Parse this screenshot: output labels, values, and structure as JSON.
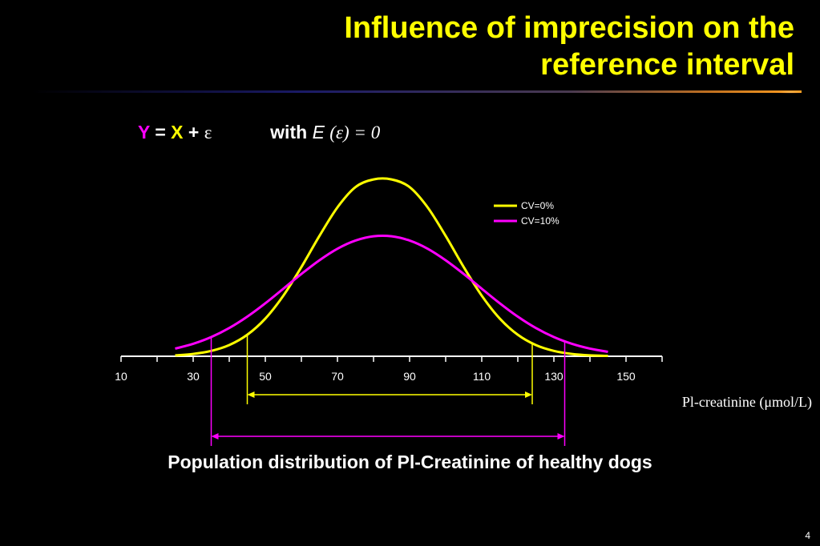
{
  "slide": {
    "title_line1": "Influence of imprecision on the",
    "title_line2": "reference interval",
    "formula": {
      "y": "Y",
      "eq": "=",
      "x": "X",
      "plus": "+",
      "eps": "ε",
      "with": "with",
      "e": "E",
      "expect": "(ε) = 0"
    },
    "xlabel": "Pl-creatinine (μmol/L)",
    "caption": "Population distribution of Pl-Creatinine of healthy dogs",
    "page_number": "4"
  },
  "colors": {
    "background": "#000000",
    "title": "#ffff00",
    "series_cv0": "#ffff00",
    "series_cv10": "#ff00ff",
    "text": "#ffffff"
  },
  "chart_data": {
    "type": "line",
    "x_ticks": [
      10,
      30,
      50,
      70,
      90,
      110,
      130,
      150
    ],
    "xlim": [
      10,
      160
    ],
    "series": [
      {
        "name": "CV=0%",
        "color": "#ffff00",
        "x": [
          25,
          30,
          35,
          40,
          45,
          50,
          55,
          60,
          65,
          70,
          75,
          80,
          85,
          90,
          95,
          100,
          105,
          110,
          115,
          120,
          125,
          130,
          135,
          140,
          145
        ],
        "y": [
          0.005,
          0.013,
          0.03,
          0.063,
          0.121,
          0.212,
          0.341,
          0.502,
          0.677,
          0.838,
          0.952,
          0.995,
          0.995,
          0.952,
          0.838,
          0.677,
          0.502,
          0.341,
          0.212,
          0.121,
          0.063,
          0.03,
          0.013,
          0.005,
          0.002
        ]
      },
      {
        "name": "CV=10%",
        "color": "#ff00ff",
        "x": [
          25,
          30,
          35,
          40,
          45,
          50,
          55,
          60,
          65,
          70,
          75,
          80,
          85,
          90,
          95,
          100,
          105,
          110,
          115,
          120,
          125,
          130,
          135,
          140,
          145
        ],
        "y": [
          0.043,
          0.07,
          0.108,
          0.159,
          0.223,
          0.298,
          0.38,
          0.463,
          0.54,
          0.605,
          0.651,
          0.675,
          0.675,
          0.651,
          0.605,
          0.54,
          0.463,
          0.38,
          0.298,
          0.223,
          0.159,
          0.108,
          0.07,
          0.043,
          0.025
        ]
      }
    ],
    "intervals": [
      {
        "series": "CV=0%",
        "from": 45,
        "to": 124
      },
      {
        "series": "CV=10%",
        "from": 35,
        "to": 133
      }
    ],
    "legend_position": "top-right",
    "grid": false
  }
}
